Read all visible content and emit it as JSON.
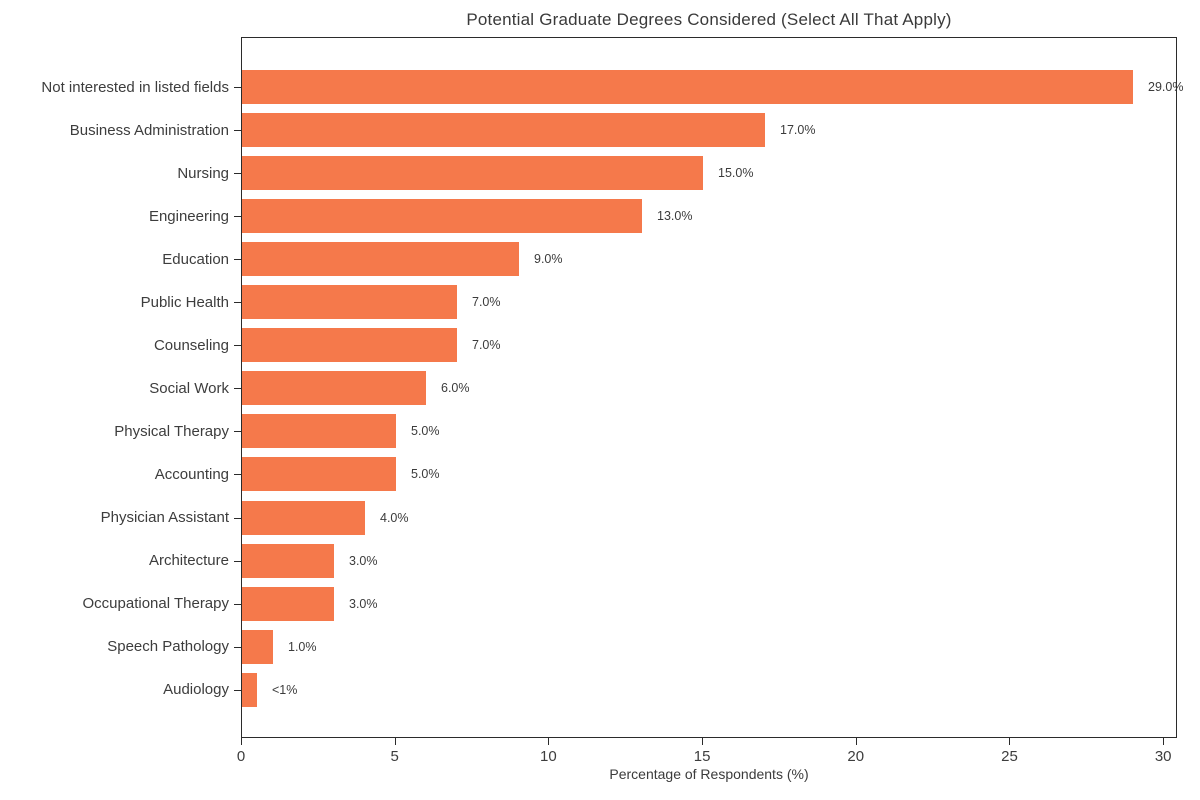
{
  "chart_data": {
    "type": "bar",
    "orientation": "horizontal",
    "title": "Potential Graduate Degrees Considered (Select All That Apply)",
    "xlabel": "Percentage of Respondents (%)",
    "ylabel": "",
    "xlim": [
      0,
      30.45
    ],
    "xticks": [
      0,
      5,
      10,
      15,
      20,
      25,
      30
    ],
    "grid": false,
    "legend": "none",
    "categories": [
      "Not interested in listed fields",
      "Business Administration",
      "Nursing",
      "Engineering",
      "Education",
      "Public Health",
      "Counseling",
      "Social Work",
      "Physical Therapy",
      "Accounting",
      "Physician Assistant",
      "Architecture",
      "Occupational Therapy",
      "Speech Pathology",
      "Audiology"
    ],
    "values": [
      29.0,
      17.0,
      15.0,
      13.0,
      9.0,
      7.0,
      7.0,
      6.0,
      5.0,
      5.0,
      4.0,
      3.0,
      3.0,
      1.0,
      0.5
    ],
    "value_labels": [
      "29.0%",
      "17.0%",
      "15.0%",
      "13.0%",
      "9.0%",
      "7.0%",
      "7.0%",
      "6.0%",
      "5.0%",
      "5.0%",
      "4.0%",
      "3.0%",
      "3.0%",
      "1.0%",
      "<1%"
    ],
    "bar_color": "#F5794B",
    "text_color": "#3b3b3b",
    "spine_color": "#2b2b2b",
    "background_color": "#ffffff"
  }
}
